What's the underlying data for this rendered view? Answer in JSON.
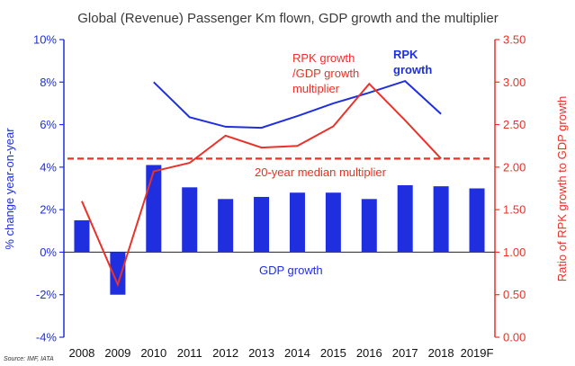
{
  "chart_data": {
    "type": "bar+line",
    "title": "Global (Revenue) Passenger Km flown, GDP growth and the multiplier",
    "source": "Source: IMF, IATA",
    "categories": [
      "2008",
      "2009",
      "2010",
      "2011",
      "2012",
      "2013",
      "2014",
      "2015",
      "2016",
      "2017",
      "2018",
      "2019F"
    ],
    "left_axis": {
      "label": "% change year-on-year",
      "range": [
        -4,
        10
      ],
      "ticks": [
        "-4%",
        "-2%",
        "0%",
        "2%",
        "4%",
        "6%",
        "8%",
        "10%"
      ],
      "tick_values": [
        -4,
        -2,
        0,
        2,
        4,
        6,
        8,
        10
      ],
      "color": "#1f2fe0"
    },
    "right_axis": {
      "label": "Ratio of RPK growth to GDP growth",
      "range": [
        0,
        3.5
      ],
      "ticks": [
        "0.00",
        "0.50",
        "1.00",
        "1.50",
        "2.00",
        "2.50",
        "3.00",
        "3.50"
      ],
      "tick_values": [
        0,
        0.5,
        1,
        1.5,
        2,
        2.5,
        3,
        3.5
      ],
      "color": "#e8322a"
    },
    "series": [
      {
        "name": "GDP growth",
        "type": "bar",
        "axis": "left",
        "color": "#1f2fe0",
        "values": [
          1.5,
          -2.0,
          4.1,
          3.05,
          2.5,
          2.6,
          2.8,
          2.8,
          2.5,
          3.15,
          3.1,
          3.0
        ]
      },
      {
        "name": "RPK growth",
        "type": "line",
        "axis": "left",
        "color": "#1f2fe0",
        "values": [
          null,
          null,
          8.0,
          6.35,
          5.9,
          5.85,
          6.4,
          7.0,
          7.5,
          8.05,
          6.5,
          null
        ]
      },
      {
        "name": "RPK growth /GDP growth multiplier",
        "type": "line",
        "axis": "right",
        "color": "#e8322a",
        "values": [
          1.6,
          0.62,
          1.95,
          2.05,
          2.37,
          2.23,
          2.25,
          2.48,
          2.98,
          2.55,
          2.1,
          null
        ]
      },
      {
        "name": "20-year median multiplier",
        "type": "dashed-line",
        "axis": "right",
        "color": "#e8322a",
        "value": 2.1
      }
    ],
    "annotations": {
      "rpk_line1": "RPK",
      "rpk_line2": "growth",
      "mult_line1": "RPK growth",
      "mult_line2": "/GDP growth",
      "mult_line3": "multiplier",
      "median": "20-year median multiplier",
      "gdp": "GDP growth"
    }
  }
}
